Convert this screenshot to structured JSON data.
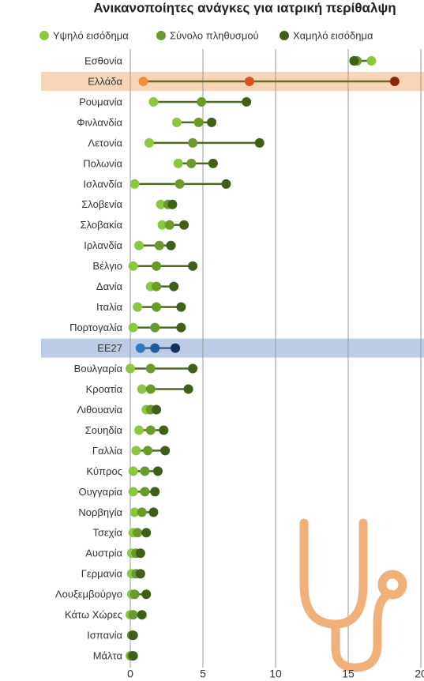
{
  "chart_data": {
    "type": "dumbbell",
    "title": "Ανικανοποίητες ανάγκες για ιατρική περίθαλψη",
    "categories": [
      "Εσθονία",
      "Ελλάδα",
      "Ρουμανία",
      "Φινλανδία",
      "Λετονία",
      "Πολωνία",
      "Ισλανδία",
      "Σλοβενία",
      "Σλοβακία",
      "Ιρλανδία",
      "Βέλγιο",
      "Δανία",
      "Ιταλία",
      "Πορτογαλία",
      "ΕΕ27",
      "Βουλγαρία",
      "Κροατία",
      "Λιθουανία",
      "Σουηδία",
      "Γαλλία",
      "Κύπρος",
      "Ουγγαρία",
      "Νορβηγία",
      "Τσεχία",
      "Αυστρία",
      "Γερμανία",
      "Λουξεμβούργο",
      "Κάτω Χώρες",
      "Ισπανία",
      "Μάλτα"
    ],
    "series": [
      {
        "name": "Υψηλό εισόδημα",
        "color": "#8dc63f",
        "values": [
          16.6,
          0.9,
          1.6,
          3.2,
          1.3,
          3.3,
          0.3,
          2.1,
          2.2,
          0.6,
          0.2,
          1.4,
          0.5,
          0.2,
          0.7,
          0.0,
          0.8,
          1.1,
          0.6,
          0.4,
          0.2,
          0.2,
          0.3,
          0.2,
          0.1,
          0.1,
          0.1,
          0.0,
          0.1,
          0.0
        ]
      },
      {
        "name": "Σύνολο πληθυσμού",
        "color": "#6a9a2a",
        "values": [
          15.6,
          8.2,
          4.9,
          4.7,
          4.3,
          4.2,
          3.4,
          2.6,
          2.7,
          2.0,
          1.8,
          1.8,
          1.8,
          1.7,
          1.7,
          1.4,
          1.4,
          1.4,
          1.4,
          1.2,
          1.0,
          1.0,
          0.8,
          0.5,
          0.4,
          0.4,
          0.3,
          0.2,
          0.1,
          0.1
        ]
      },
      {
        "name": "Χαμηλό εισόδημα",
        "color": "#40601a",
        "values": [
          15.4,
          18.2,
          8.0,
          5.6,
          8.9,
          5.7,
          6.6,
          2.9,
          3.7,
          2.8,
          4.3,
          3.0,
          3.5,
          3.5,
          3.1,
          4.3,
          4.0,
          1.8,
          2.3,
          2.4,
          1.9,
          1.7,
          1.6,
          1.1,
          0.7,
          0.7,
          1.1,
          0.8,
          0.2,
          0.2
        ]
      }
    ],
    "line_color": "#4d6b1f",
    "highlights": {
      "Ελλάδα": {
        "band_color": "#f8d5b8",
        "line_color": "#6b6b1f",
        "colors": [
          "#f0903c",
          "#d9541a",
          "#8b2a0a"
        ]
      },
      "ΕΕ27": {
        "band_color": "#bccbe6",
        "line_color": "#3b5f9c",
        "colors": [
          "#2e78c4",
          "#245a9c",
          "#14305e"
        ]
      }
    },
    "xlim": [
      0,
      20
    ],
    "xticks": [
      0,
      5,
      10,
      15,
      20
    ],
    "grid": true
  }
}
